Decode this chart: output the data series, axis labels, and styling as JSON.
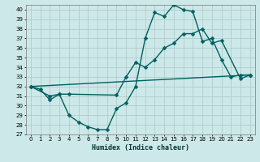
{
  "xlabel": "Humidex (Indice chaleur)",
  "background_color": "#cde8e8",
  "grid_color": "#b0cccc",
  "line_color": "#006060",
  "xlim": [
    -0.5,
    23.5
  ],
  "ylim": [
    27,
    40.5
  ],
  "yticks": [
    27,
    28,
    29,
    30,
    31,
    32,
    33,
    34,
    35,
    36,
    37,
    38,
    39,
    40
  ],
  "xticks": [
    0,
    1,
    2,
    3,
    4,
    5,
    6,
    7,
    8,
    9,
    10,
    11,
    12,
    13,
    14,
    15,
    16,
    17,
    18,
    19,
    20,
    21,
    22,
    23
  ],
  "series1_x": [
    0,
    1,
    2,
    3,
    4,
    5,
    6,
    7,
    8,
    9,
    10,
    11,
    12,
    13,
    14,
    15,
    16,
    17,
    18,
    19,
    20,
    21,
    22,
    23
  ],
  "series1_y": [
    32,
    31.7,
    30.6,
    31.2,
    29.0,
    28.3,
    27.8,
    27.5,
    27.5,
    29.7,
    30.3,
    32.0,
    37.0,
    39.7,
    39.3,
    40.5,
    40.0,
    39.8,
    36.7,
    37.0,
    34.8,
    33.0,
    33.2,
    33.2
  ],
  "series2_x": [
    0,
    2,
    3,
    4,
    9,
    10,
    11,
    12,
    13,
    14,
    15,
    16,
    17,
    18,
    19,
    20,
    22,
    23
  ],
  "series2_y": [
    32,
    31.0,
    31.2,
    31.2,
    31.1,
    33.0,
    34.5,
    34.0,
    34.8,
    36.0,
    36.5,
    37.5,
    37.5,
    38.0,
    36.5,
    36.8,
    32.8,
    33.2
  ],
  "series3_x": [
    0,
    23
  ],
  "series3_y": [
    32.0,
    33.2
  ],
  "marker_size": 2.5,
  "linewidth": 1.0
}
